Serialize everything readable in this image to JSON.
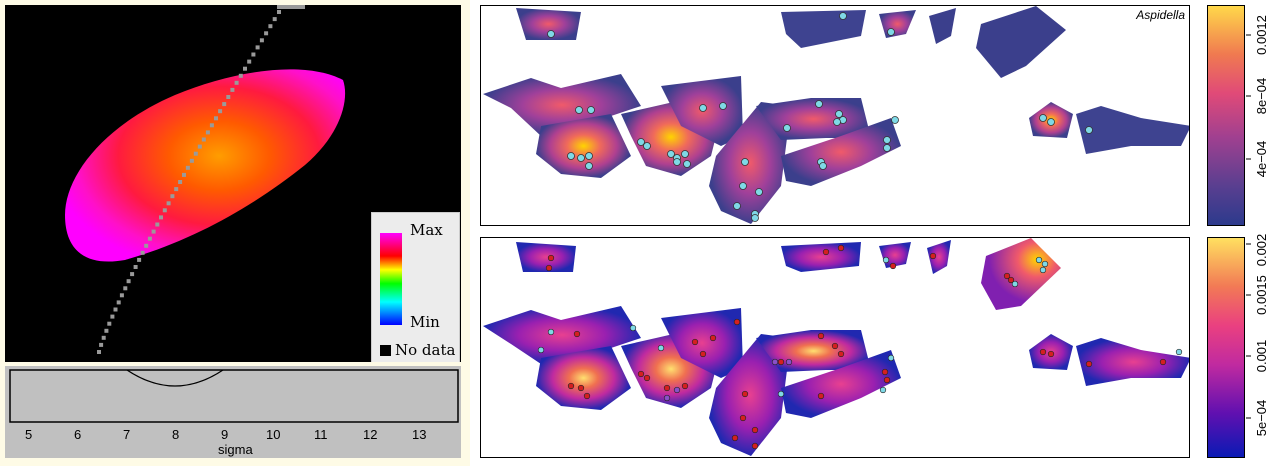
{
  "left_panel": {
    "legend": {
      "max_label": "Max",
      "min_label": "Min",
      "nodata_label": "No data"
    },
    "profile": {
      "x_ticks": [
        "5",
        "6",
        "7",
        "8",
        "9",
        "10",
        "11",
        "12",
        "13"
      ],
      "x_label": "sigma"
    }
  },
  "top_map": {
    "genus_label": "Aspidella",
    "colorbar_ticks": [
      "4e−04",
      "8e−04",
      "0.0012"
    ]
  },
  "bottom_map": {
    "colorbar_ticks": [
      "5e−04",
      "0.001",
      "0.0015",
      "0.002"
    ]
  },
  "colors": {
    "heat_outer": "#ff00ff",
    "heat_core": "#ff8000",
    "map_low_top": "#3b3f8c",
    "map_low_bottom": "#1a20b0",
    "map_high": "#ffd800",
    "point_cyan": "#7fd9e6",
    "point_red": "#d42020"
  }
}
